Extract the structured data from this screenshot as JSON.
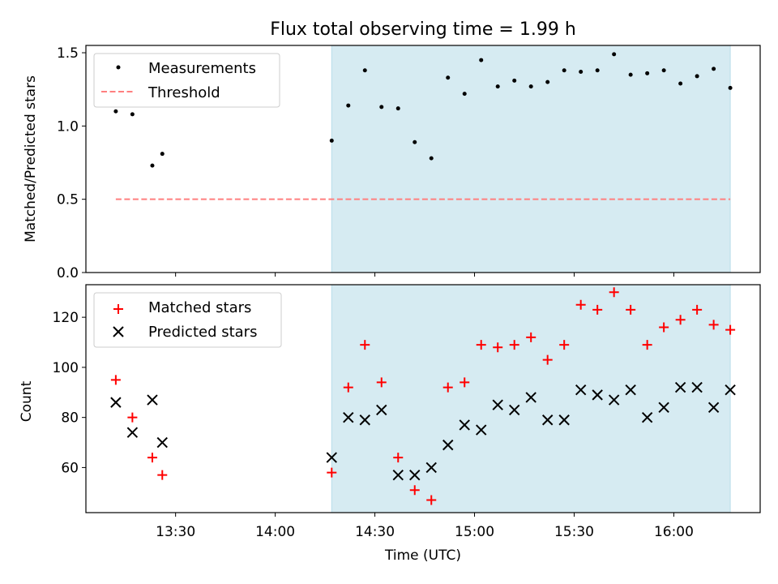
{
  "colors": {
    "shade": "#add8e6",
    "matched": "#ff0000",
    "predicted": "#000000",
    "threshold": "#ff7f7f",
    "measurement": "#000000"
  },
  "chart_data": [
    {
      "type": "scatter",
      "panel": "top",
      "title": "Flux total observing time = 1.99 h",
      "xlabel": "",
      "ylabel": "Matched/Predicted stars",
      "x_range": [
        "13:03",
        "16:26"
      ],
      "ylim": [
        0,
        1.55
      ],
      "yticks": [
        "0.0",
        "0.5",
        "1.0",
        "1.5"
      ],
      "shaded_interval": [
        "14:17",
        "16:17"
      ],
      "legend_position": "upper-left",
      "legend": [
        "Measurements",
        "Threshold"
      ],
      "series": [
        {
          "name": "Measurements",
          "marker": "dot",
          "x": [
            "13:12",
            "13:17",
            "13:23",
            "13:26",
            "14:17",
            "14:22",
            "14:27",
            "14:32",
            "14:37",
            "14:42",
            "14:47",
            "14:52",
            "14:57",
            "15:02",
            "15:07",
            "15:12",
            "15:17",
            "15:22",
            "15:27",
            "15:32",
            "15:37",
            "15:42",
            "15:47",
            "15:52",
            "15:57",
            "16:02",
            "16:07",
            "16:12",
            "16:17"
          ],
          "values": [
            1.1,
            1.08,
            0.73,
            0.81,
            0.9,
            1.14,
            1.38,
            1.13,
            1.12,
            0.89,
            0.78,
            1.33,
            1.22,
            1.45,
            1.27,
            1.31,
            1.27,
            1.3,
            1.38,
            1.37,
            1.38,
            1.49,
            1.35,
            1.36,
            1.38,
            1.29,
            1.34,
            1.39,
            1.26
          ]
        },
        {
          "name": "Threshold",
          "style": "dashed",
          "x": [
            "13:12",
            "16:17"
          ],
          "values": [
            0.5,
            0.5
          ]
        }
      ]
    },
    {
      "type": "scatter",
      "panel": "bottom",
      "title": "",
      "xlabel": "Time (UTC)",
      "ylabel": "Count",
      "x_range": [
        "13:03",
        "16:26"
      ],
      "xticks": [
        "13:30",
        "14:00",
        "14:30",
        "15:00",
        "15:30",
        "16:00"
      ],
      "ylim": [
        42,
        133
      ],
      "yticks": [
        "60",
        "80",
        "100",
        "120"
      ],
      "shaded_interval": [
        "14:17",
        "16:17"
      ],
      "legend_position": "upper-left",
      "legend": [
        "Matched stars",
        "Predicted stars"
      ],
      "series": [
        {
          "name": "Matched stars",
          "marker": "plus",
          "x": [
            "13:12",
            "13:17",
            "13:23",
            "13:26",
            "14:17",
            "14:22",
            "14:27",
            "14:32",
            "14:37",
            "14:42",
            "14:47",
            "14:52",
            "14:57",
            "15:02",
            "15:07",
            "15:12",
            "15:17",
            "15:22",
            "15:27",
            "15:32",
            "15:37",
            "15:42",
            "15:47",
            "15:52",
            "15:57",
            "16:02",
            "16:07",
            "16:12",
            "16:17"
          ],
          "values": [
            95,
            80,
            64,
            57,
            58,
            92,
            109,
            94,
            64,
            51,
            47,
            92,
            94,
            109,
            108,
            109,
            112,
            103,
            109,
            125,
            123,
            130,
            123,
            109,
            116,
            119,
            123,
            117,
            115
          ]
        },
        {
          "name": "Predicted stars",
          "marker": "x",
          "x": [
            "13:12",
            "13:17",
            "13:23",
            "13:26",
            "14:17",
            "14:22",
            "14:27",
            "14:32",
            "14:37",
            "14:42",
            "14:47",
            "14:52",
            "14:57",
            "15:02",
            "15:07",
            "15:12",
            "15:17",
            "15:22",
            "15:27",
            "15:32",
            "15:37",
            "15:42",
            "15:47",
            "15:52",
            "15:57",
            "16:02",
            "16:07",
            "16:12",
            "16:17"
          ],
          "values": [
            86,
            74,
            87,
            70,
            64,
            80,
            79,
            83,
            57,
            57,
            60,
            69,
            77,
            75,
            85,
            83,
            88,
            79,
            79,
            91,
            89,
            87,
            91,
            80,
            84,
            92,
            92,
            84,
            91
          ]
        }
      ]
    }
  ]
}
